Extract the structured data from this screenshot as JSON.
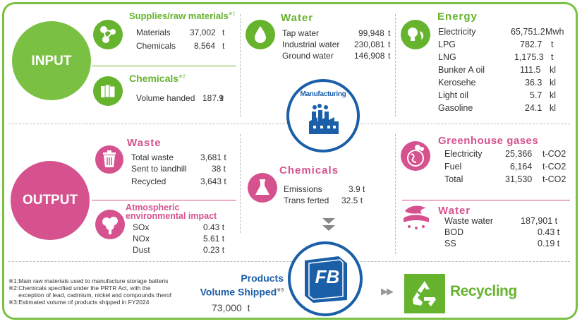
{
  "input": {
    "label": "INPUT"
  },
  "output": {
    "label": "OUTPUT"
  },
  "supplies": {
    "title": "Supplies/raw materials",
    "mark": "※1",
    "rows": [
      {
        "name": "Materials",
        "value": "37,002",
        "unit": "t"
      },
      {
        "name": "Chemicals",
        "value": "8,564",
        "unit": "t"
      }
    ]
  },
  "chemicals_in": {
    "title": "Chemicals",
    "mark": "※2",
    "rows": [
      {
        "name": "Volume handed",
        "value": "187.9",
        "unit": "t"
      }
    ]
  },
  "water_in": {
    "title": "Water",
    "rows": [
      {
        "name": "Tap water",
        "value": "99,948",
        "unit": "t"
      },
      {
        "name": "Industrial water",
        "value": "230,081",
        "unit": "t"
      },
      {
        "name": "Ground water",
        "value": "146,908",
        "unit": "t"
      }
    ]
  },
  "energy": {
    "title": "Energy",
    "rows": [
      {
        "name": "Electricity",
        "value": "65,751.2",
        "unit": "Mwh"
      },
      {
        "name": "LPG",
        "value": "782.7",
        "unit": "t"
      },
      {
        "name": "LNG",
        "value": "1,175.3",
        "unit": "t"
      },
      {
        "name": "Bunker A oil",
        "value": "111.5",
        "unit": "kl"
      },
      {
        "name": "Kerosehe",
        "value": "36.3",
        "unit": "kl"
      },
      {
        "name": "Light oil",
        "value": "5.7",
        "unit": "kl"
      },
      {
        "name": "Gasoline",
        "value": "24.1",
        "unit": "kl"
      }
    ]
  },
  "manufacturing": {
    "label": "Manufacturing"
  },
  "waste": {
    "title": "Waste",
    "rows": [
      {
        "name": "Total waste",
        "value": "3,681 t"
      },
      {
        "name": "Sent to landhill",
        "value": "38 t"
      },
      {
        "name": "Recycled",
        "value": "3,643 t"
      }
    ]
  },
  "atmos": {
    "title_line1": "Atmospheric",
    "title_line2": "environmental impact",
    "rows": [
      {
        "name": "SOx",
        "value": "0.43 t"
      },
      {
        "name": "NOx",
        "value": "5.61 t"
      },
      {
        "name": "Dust",
        "value": "0.23 t"
      }
    ]
  },
  "chemicals_out": {
    "title": "Chemicals",
    "rows": [
      {
        "name": "Emissions",
        "value": "3.9 t"
      },
      {
        "name": "Trans ferted",
        "value": "32.5 t"
      }
    ]
  },
  "ghg": {
    "title": "Greenhouse gases",
    "rows": [
      {
        "name": "Electricity",
        "value": "25,366",
        "unit": "t-CO2"
      },
      {
        "name": "Fuel",
        "value": "6,164",
        "unit": "t-CO2"
      },
      {
        "name": "Total",
        "value": "31,530",
        "unit": "t-CO2"
      }
    ]
  },
  "water_out": {
    "title": "Water",
    "rows": [
      {
        "name": "Waste water",
        "value": "187,901 t"
      },
      {
        "name": "BOD",
        "value": "0.43 t"
      },
      {
        "name": "SS",
        "value": "0.19 t"
      }
    ]
  },
  "products": {
    "line1": "Products",
    "line2": "Volume Shipped",
    "mark": "※3",
    "value": "73,000",
    "unit": "t"
  },
  "logo": {
    "text": "FB"
  },
  "recycling": {
    "label": "Recycling",
    "arrows": "▶▶"
  },
  "notes": [
    "※1:Main raw materials used to manufacture storage batteris",
    "※2:Chemicals specified under the PRTR Act, with the",
    "      exception of lead, cadmium, nickel and compounds therof",
    "※3:Estimated volume of products shipped in  FY2024"
  ],
  "colors": {
    "green": "#66b32e",
    "pink": "#d5528e",
    "blue": "#1a5fa8"
  }
}
